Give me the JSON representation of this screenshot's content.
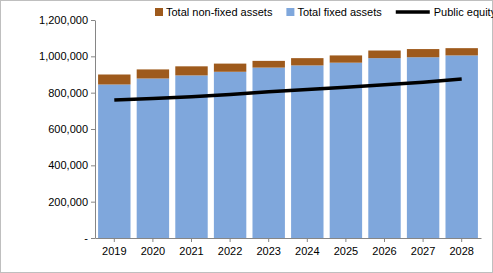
{
  "chart_data": {
    "type": "bar",
    "stacked": true,
    "grid": false,
    "legend": "top",
    "categories": [
      "2019",
      "2020",
      "2021",
      "2022",
      "2023",
      "2024",
      "2025",
      "2026",
      "2027",
      "2028"
    ],
    "series": [
      {
        "name": "Total non-fixed assets",
        "type": "bar",
        "color": "#9e5a1c",
        "values": [
          55000,
          50000,
          50000,
          45000,
          37000,
          40000,
          40000,
          42000,
          45000,
          40000
        ]
      },
      {
        "name": "Total fixed assets",
        "type": "bar",
        "color": "#7fa7dc",
        "values": [
          845000,
          878000,
          895000,
          915000,
          938000,
          950000,
          965000,
          990000,
          995000,
          1005000
        ]
      },
      {
        "name": "Public equity",
        "type": "line",
        "color": "#000000",
        "line_style": "solid",
        "values": [
          760000,
          768000,
          778000,
          790000,
          805000,
          818000,
          830000,
          843000,
          858000,
          875000
        ]
      }
    ],
    "ylim": [
      0,
      1200000
    ],
    "yticks": [
      {
        "value": 0,
        "label": "-"
      },
      {
        "value": 200000,
        "label": "200,000"
      },
      {
        "value": 400000,
        "label": "400,000"
      },
      {
        "value": 600000,
        "label": "600,000"
      },
      {
        "value": 800000,
        "label": "800,000"
      },
      {
        "value": 1000000,
        "label": "1,000,000"
      },
      {
        "value": 1200000,
        "label": "1,200,000"
      }
    ]
  }
}
